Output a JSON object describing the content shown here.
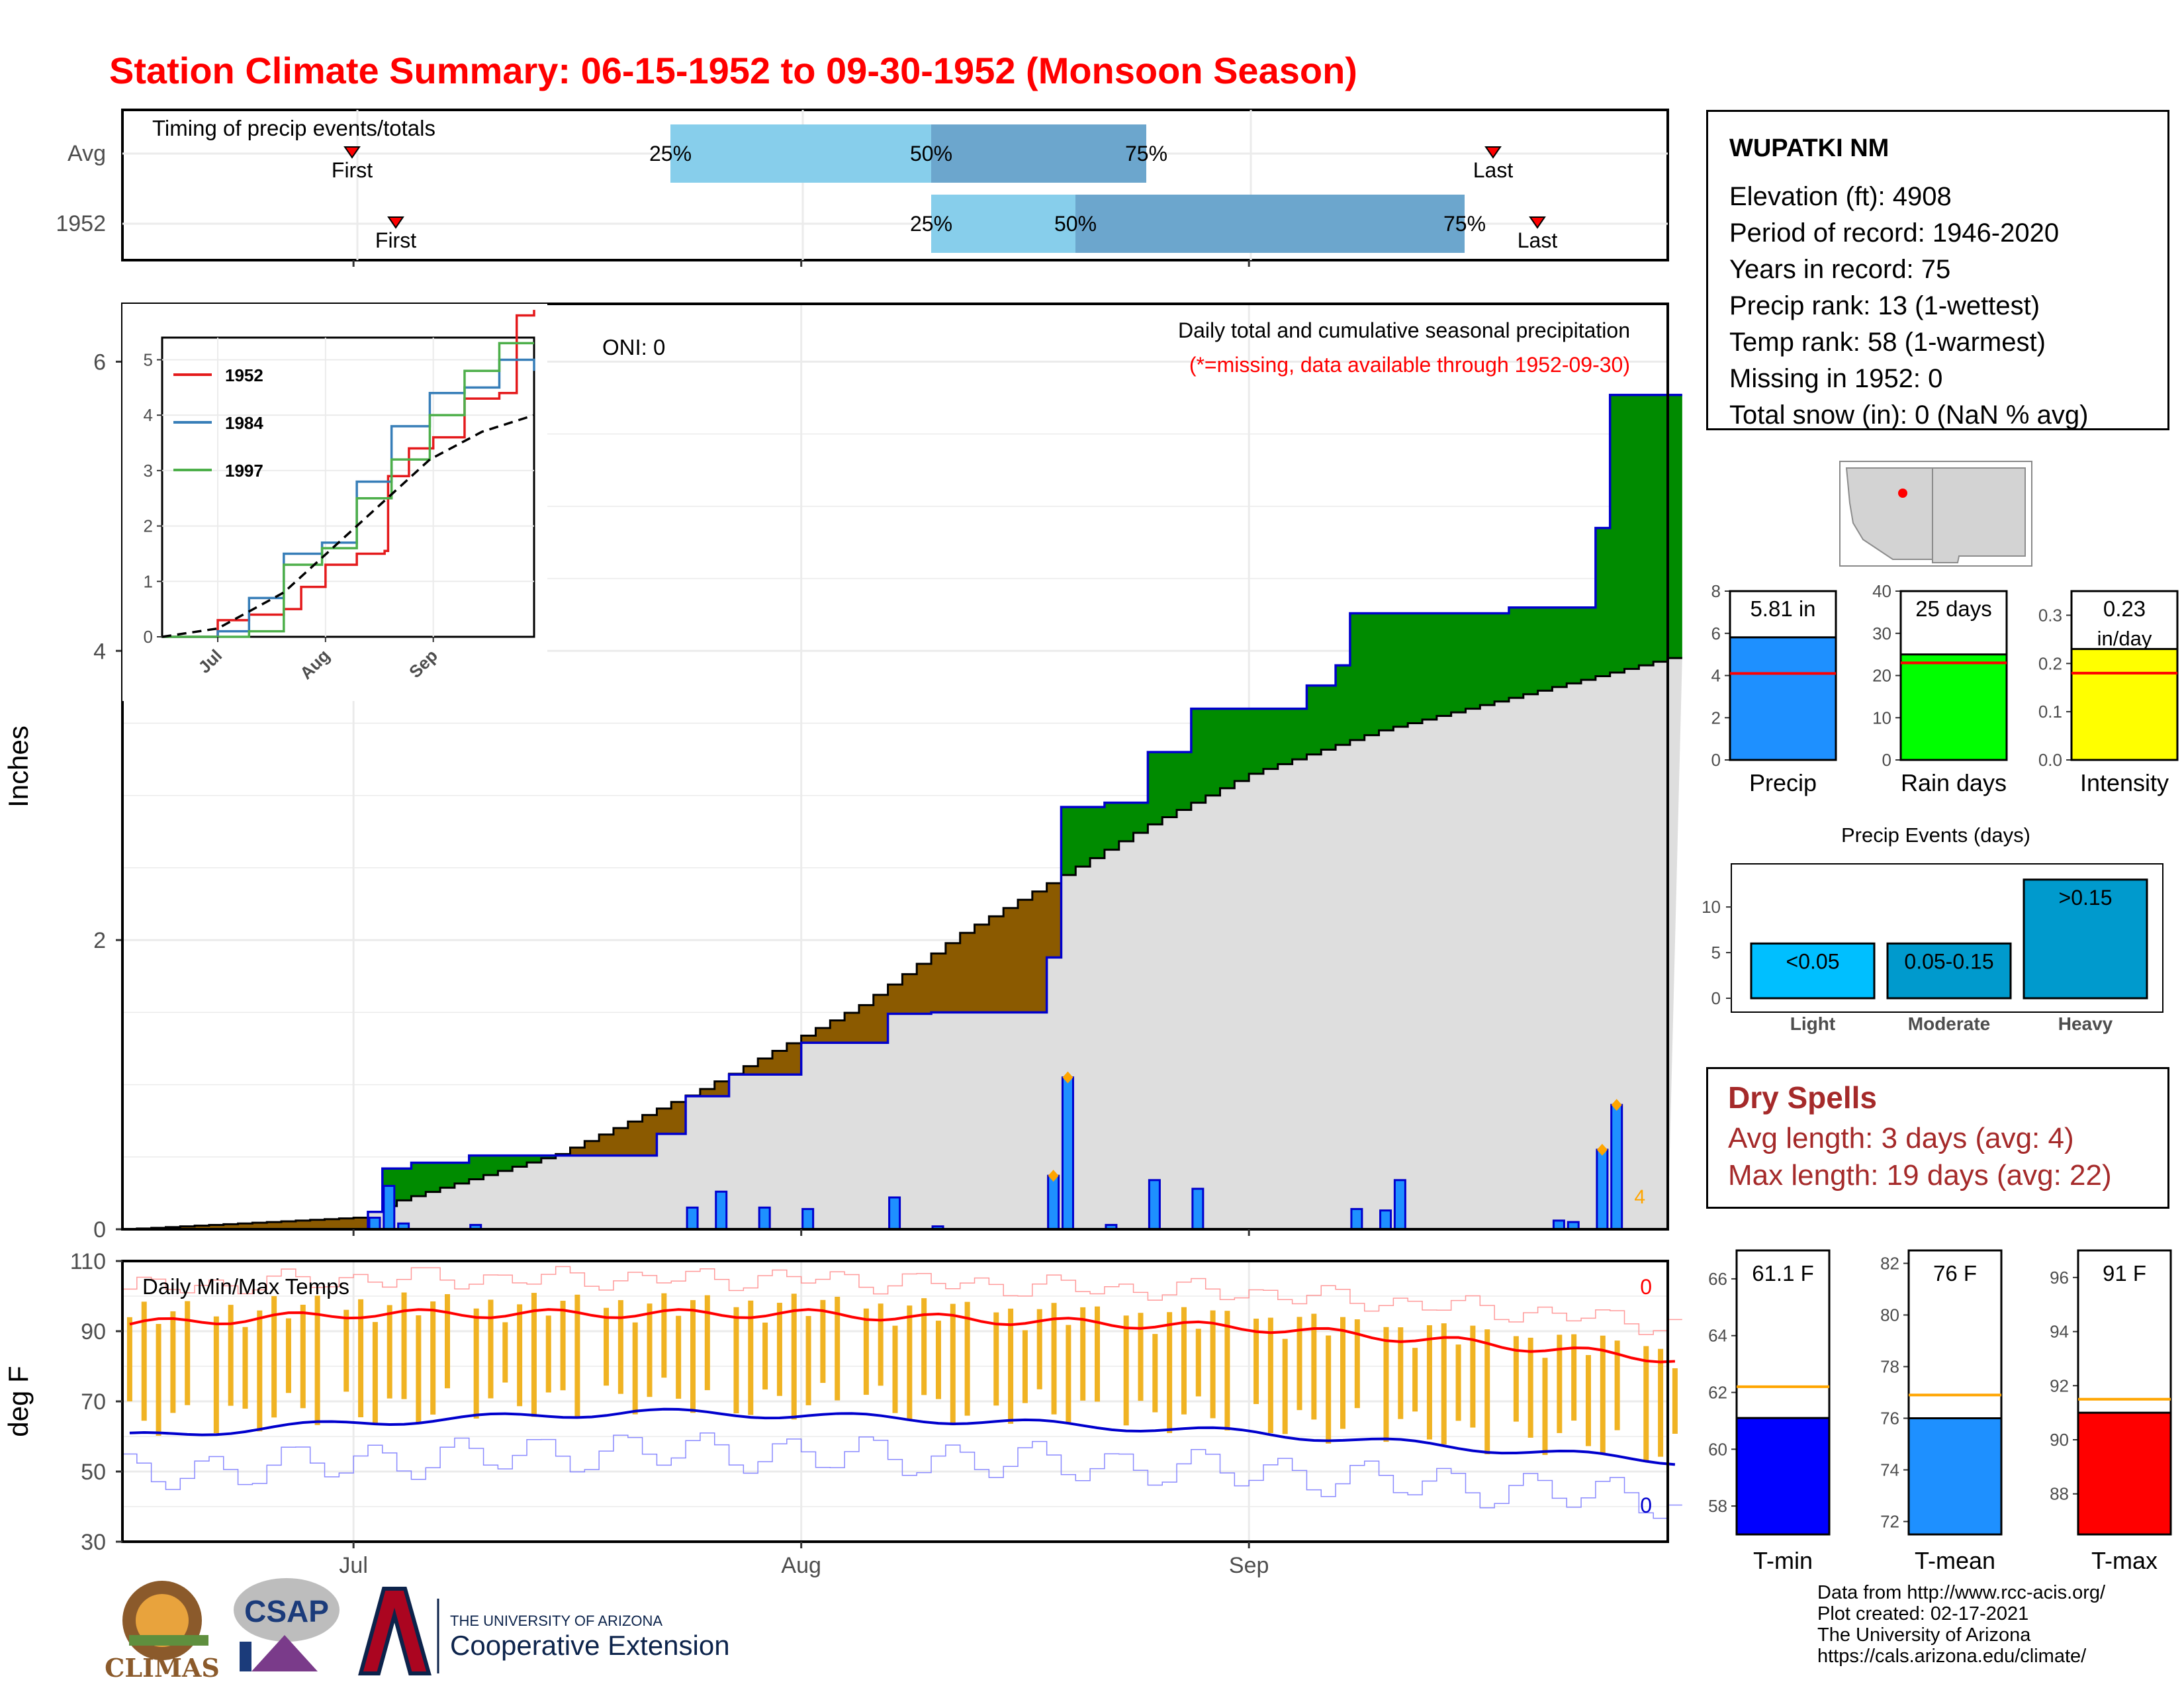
{
  "title": "Station Climate Summary: 06-15-1952 to 09-30-1952 (Monsoon Season)",
  "timing": {
    "label": "Timing of precip events/totals",
    "rows": [
      {
        "label": "Avg",
        "first_label": "First",
        "last_label": "Last",
        "p25": "25%",
        "p50": "50%",
        "p75": "75%"
      },
      {
        "label": "1952",
        "first_label": "First",
        "last_label": "Last",
        "p25": "25%",
        "p50": "50%",
        "p75": "75%"
      }
    ]
  },
  "main_chart": {
    "ylabel": "Inches",
    "oni_label": "ONI: 0",
    "subtitle": "Daily total and cumulative seasonal precipitation",
    "missing_note": "(*=missing, data available through 1952-09-30)",
    "corner_count": "4",
    "yticks": [
      "0",
      "2",
      "4",
      "6"
    ]
  },
  "inset": {
    "legend": [
      "1952",
      "1984",
      "1997"
    ],
    "yticks": [
      "0",
      "1",
      "2",
      "3",
      "4",
      "5"
    ],
    "xticks": [
      "Jul",
      "Aug",
      "Sep"
    ]
  },
  "temp_chart": {
    "title": "Daily Min/Max Temps",
    "ylabel": "deg F",
    "yticks": [
      "30",
      "50",
      "70",
      "90",
      "110"
    ],
    "max_count": "0",
    "min_count": "0"
  },
  "x_ticks": [
    "Jul",
    "Aug",
    "Sep"
  ],
  "station": {
    "name": "WUPATKI NM",
    "lines": [
      "Elevation (ft): 4908",
      "Period of record: 1946-2020",
      "Years in record: 75",
      "Precip rank: 13 (1-wettest)",
      "Temp rank: 58 (1-warmest)",
      "Missing in 1952: 0",
      "Total snow (in): 0 (NaN % avg)"
    ]
  },
  "summary_bars": [
    {
      "label": "Precip",
      "value_label": "5.81 in",
      "color": "#1e90ff",
      "yticks": [
        "0",
        "2",
        "4",
        "6",
        "8"
      ]
    },
    {
      "label": "Rain days",
      "value_label": "25 days",
      "color": "#00ff00",
      "yticks": [
        "0",
        "10",
        "20",
        "30",
        "40"
      ]
    },
    {
      "label": "Intensity",
      "value_label": "0.23",
      "value_unit": "in/day",
      "color": "#ffff00",
      "yticks": [
        "0.0",
        "0.1",
        "0.2",
        "0.3"
      ]
    }
  ],
  "events_chart": {
    "title": "Precip Events (days)",
    "categories": [
      "Light",
      "Moderate",
      "Heavy"
    ],
    "bar_labels": [
      "<0.05",
      "0.05-0.15",
      ">0.15"
    ],
    "yticks": [
      "0",
      "5",
      "10"
    ]
  },
  "dry_spells": {
    "title": "Dry Spells",
    "avg_length": "Avg length: 3 days (avg: 4)",
    "max_length": "Max length: 19 days (avg: 22)"
  },
  "temp_bars": [
    {
      "label": "T-min",
      "value_label": "61.1 F",
      "color": "#0000ff",
      "yticks": [
        "58",
        "60",
        "62",
        "64",
        "66"
      ]
    },
    {
      "label": "T-mean",
      "value_label": "76 F",
      "color": "#1e90ff",
      "yticks": [
        "72",
        "74",
        "76",
        "78",
        "80",
        "82"
      ]
    },
    {
      "label": "T-max",
      "value_label": "91 F",
      "color": "#ff0000",
      "yticks": [
        "88",
        "90",
        "92",
        "94",
        "96"
      ]
    }
  ],
  "logos": {
    "climas": "CLIMAS",
    "csap": "CSAP",
    "ua_top": "THE UNIVERSITY OF ARIZONA",
    "ua_bottom": "Cooperative Extension"
  },
  "credits": [
    "Data from http://www.rcc-acis.org/",
    "Plot created: 02-17-2021",
    "The University of Arizona",
    "https://cals.arizona.edu/climate/"
  ],
  "chart_data": [
    {
      "type": "area",
      "name": "cumulative_precip",
      "x_start": "1952-06-15",
      "x_end": "1952-09-30",
      "xticks": [
        "Jul",
        "Aug",
        "Sep"
      ],
      "ylabel": "Inches",
      "ylim": [
        0,
        6.4
      ],
      "observed_cumulative": [
        {
          "date": "1952-07-01",
          "value": 0.0
        },
        {
          "date": "1952-07-02",
          "value": 0.12
        },
        {
          "date": "1952-07-03",
          "value": 0.42
        },
        {
          "date": "1952-07-05",
          "value": 0.46
        },
        {
          "date": "1952-07-09",
          "value": 0.51
        },
        {
          "date": "1952-07-22",
          "value": 0.66
        },
        {
          "date": "1952-07-24",
          "value": 0.92
        },
        {
          "date": "1952-07-27",
          "value": 1.07
        },
        {
          "date": "1952-08-01",
          "value": 1.29
        },
        {
          "date": "1952-08-07",
          "value": 1.49
        },
        {
          "date": "1952-08-10",
          "value": 1.5
        },
        {
          "date": "1952-08-18",
          "value": 1.88
        },
        {
          "date": "1952-08-19",
          "value": 2.92
        },
        {
          "date": "1952-08-22",
          "value": 2.95
        },
        {
          "date": "1952-08-25",
          "value": 3.3
        },
        {
          "date": "1952-08-28",
          "value": 3.6
        },
        {
          "date": "1952-09-03",
          "value": 3.6
        },
        {
          "date": "1952-09-05",
          "value": 3.76
        },
        {
          "date": "1952-09-07",
          "value": 3.9
        },
        {
          "date": "1952-09-08",
          "value": 4.26
        },
        {
          "date": "1952-09-17",
          "value": 4.26
        },
        {
          "date": "1952-09-19",
          "value": 4.3
        },
        {
          "date": "1952-09-23",
          "value": 4.3
        },
        {
          "date": "1952-09-25",
          "value": 4.85
        },
        {
          "date": "1952-09-26",
          "value": 5.77
        },
        {
          "date": "1952-09-30",
          "value": 5.77
        }
      ],
      "average_cumulative": [
        {
          "date": "1952-06-15",
          "value": 0.0
        },
        {
          "date": "1952-07-01",
          "value": 0.08
        },
        {
          "date": "1952-07-04",
          "value": 0.2
        },
        {
          "date": "1952-07-15",
          "value": 0.52
        },
        {
          "date": "1952-07-25",
          "value": 0.97
        },
        {
          "date": "1952-08-05",
          "value": 1.55
        },
        {
          "date": "1952-08-12",
          "value": 2.05
        },
        {
          "date": "1952-08-19",
          "value": 2.45
        },
        {
          "date": "1952-08-25",
          "value": 2.8
        },
        {
          "date": "1952-09-01",
          "value": 3.15
        },
        {
          "date": "1952-09-10",
          "value": 3.45
        },
        {
          "date": "1952-09-20",
          "value": 3.7
        },
        {
          "date": "1952-09-30",
          "value": 3.95
        }
      ]
    },
    {
      "type": "bar",
      "name": "daily_precip",
      "x": [
        "1952-07-02",
        "1952-07-03",
        "1952-07-04",
        "1952-07-09",
        "1952-07-24",
        "1952-07-26",
        "1952-07-29",
        "1952-08-01",
        "1952-08-07",
        "1952-08-10",
        "1952-08-18",
        "1952-08-19",
        "1952-08-22",
        "1952-08-25",
        "1952-08-28",
        "1952-09-08",
        "1952-09-10",
        "1952-09-11",
        "1952-09-22",
        "1952-09-23",
        "1952-09-25",
        "1952-09-26"
      ],
      "values": [
        0.08,
        0.3,
        0.04,
        0.03,
        0.15,
        0.26,
        0.15,
        0.14,
        0.22,
        0.02,
        0.37,
        1.05,
        0.03,
        0.34,
        0.28,
        0.14,
        0.13,
        0.34,
        0.06,
        0.05,
        0.55,
        0.86
      ],
      "highlighted_values": [
        0.37,
        1.05,
        0.55,
        0.86
      ]
    },
    {
      "type": "line",
      "name": "inset_cumulative_comparison",
      "series": [
        {
          "name": "1952",
          "color": "#e41a1c",
          "points": [
            [
              "1952-06-15",
              0
            ],
            [
              "1952-06-30",
              0
            ],
            [
              "1952-07-01",
              0.3
            ],
            [
              "1952-07-10",
              0.4
            ],
            [
              "1952-07-20",
              0.5
            ],
            [
              "1952-07-25",
              0.9
            ],
            [
              "1952-08-01",
              1.3
            ],
            [
              "1952-08-10",
              1.5
            ],
            [
              "1952-08-18",
              1.55
            ],
            [
              "1952-08-19",
              2.9
            ],
            [
              "1952-08-25",
              3.4
            ],
            [
              "1952-09-01",
              3.6
            ],
            [
              "1952-09-10",
              4.3
            ],
            [
              "1952-09-20",
              4.4
            ],
            [
              "1952-09-25",
              5.8
            ],
            [
              "1952-09-30",
              5.9
            ]
          ]
        },
        {
          "name": "1984",
          "color": "#377eb8",
          "points": [
            [
              "1984-06-15",
              0
            ],
            [
              "1984-07-01",
              0.1
            ],
            [
              "1984-07-10",
              0.7
            ],
            [
              "1984-07-20",
              1.5
            ],
            [
              "1984-07-31",
              1.7
            ],
            [
              "1984-08-10",
              2.8
            ],
            [
              "1984-08-20",
              3.8
            ],
            [
              "1984-08-31",
              4.4
            ],
            [
              "1984-09-10",
              4.5
            ],
            [
              "1984-09-20",
              5.0
            ],
            [
              "1984-09-30",
              4.8
            ]
          ]
        },
        {
          "name": "1997",
          "color": "#4daf4a",
          "points": [
            [
              "1997-06-15",
              0
            ],
            [
              "1997-07-10",
              0.1
            ],
            [
              "1997-07-20",
              1.3
            ],
            [
              "1997-07-31",
              1.6
            ],
            [
              "1997-08-10",
              2.5
            ],
            [
              "1997-08-20",
              3.2
            ],
            [
              "1997-08-31",
              4.0
            ],
            [
              "1997-09-10",
              4.8
            ],
            [
              "1997-09-20",
              5.3
            ],
            [
              "1997-09-30",
              5.3
            ]
          ]
        },
        {
          "name": "",
          "dashed": true,
          "points": [
            [
              "1952-06-15",
              0
            ],
            [
              "1952-07-01",
              0.15
            ],
            [
              "1952-07-20",
              0.8
            ],
            [
              "1952-08-10",
              2.0
            ],
            [
              "1952-08-31",
              3.2
            ],
            [
              "1952-09-15",
              3.7
            ],
            [
              "1952-09-30",
              4.0
            ]
          ]
        }
      ],
      "yticks": [
        "0",
        "1",
        "2",
        "3",
        "4",
        "5"
      ],
      "xticks": [
        "Jul",
        "Aug",
        "Sep"
      ]
    },
    {
      "type": "bar",
      "name": "season_summary",
      "categories": [
        "Precip",
        "Rain days",
        "Intensity"
      ],
      "values": [
        5.81,
        25,
        0.23
      ],
      "averages": [
        4.1,
        23,
        0.18
      ],
      "ylims": [
        [
          0,
          8
        ],
        [
          0,
          40
        ],
        [
          0,
          0.35
        ]
      ]
    },
    {
      "type": "bar",
      "name": "precip_events",
      "categories": [
        "Light",
        "Moderate",
        "Heavy"
      ],
      "values": [
        6,
        6,
        13
      ],
      "ylim": [
        0,
        14
      ]
    },
    {
      "type": "bar",
      "name": "temperature_summary",
      "categories": [
        "T-min",
        "T-mean",
        "T-max"
      ],
      "values": [
        61.1,
        76,
        91
      ],
      "averages": [
        62.2,
        76.9,
        91.5
      ],
      "ylims": [
        [
          57,
          67
        ],
        [
          71.5,
          82.5
        ],
        [
          86.5,
          97
        ]
      ]
    },
    {
      "type": "line",
      "name": "daily_temps",
      "title": "Daily Min/Max Temps",
      "ylabel": "deg F",
      "ylim": [
        30,
        110
      ],
      "avg_max": [
        [
          "1952-06-15",
          92
        ],
        [
          "1952-07-01",
          95
        ],
        [
          "1952-07-20",
          95
        ],
        [
          "1952-08-01",
          95
        ],
        [
          "1952-08-15",
          93
        ],
        [
          "1952-09-01",
          91
        ],
        [
          "1952-09-15",
          87
        ],
        [
          "1952-09-30",
          82
        ]
      ],
      "avg_min": [
        [
          "1952-06-15",
          60
        ],
        [
          "1952-07-01",
          64
        ],
        [
          "1952-07-20",
          67
        ],
        [
          "1952-08-01",
          66
        ],
        [
          "1952-08-15",
          64
        ],
        [
          "1952-09-01",
          61
        ],
        [
          "1952-09-15",
          57
        ],
        [
          "1952-09-30",
          53
        ]
      ]
    }
  ]
}
